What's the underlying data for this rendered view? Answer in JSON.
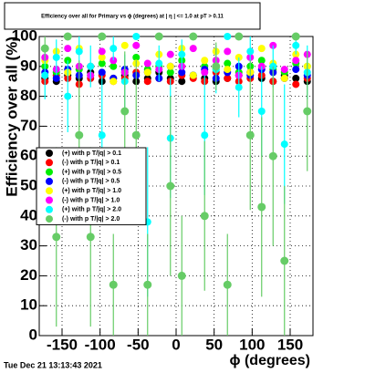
{
  "chart_data": {
    "type": "scatter",
    "title": "Efficiency over all for Primary vs ϕ (degrees) at | η | <= 1.0 at pT > 0.11",
    "x_label": "ϕ (degrees)",
    "y_label": "Efficiency over all (%)",
    "timestamp": "Tue Dec 21 13:13:43 2021",
    "x": [
      -172.5,
      -157.5,
      -142.5,
      -127.5,
      -112.5,
      -97.5,
      -82.5,
      -67.5,
      -52.5,
      -37.5,
      -22.5,
      -7.5,
      7.5,
      22.5,
      37.5,
      52.5,
      67.5,
      82.5,
      97.5,
      112.5,
      127.5,
      142.5,
      157.5,
      172.5
    ],
    "xlim": [
      -180,
      180
    ],
    "xticks": [
      -150,
      -100,
      -50,
      0,
      50,
      100,
      150
    ],
    "ylim": [
      0,
      100
    ],
    "yticks": [
      0,
      10,
      20,
      30,
      40,
      50,
      60,
      70,
      80,
      90,
      100
    ],
    "grid": true,
    "series": [
      {
        "name": "(+) with p T/|q| > 0.1",
        "color": "#000000",
        "values": [
          86,
          85,
          87,
          86,
          88,
          85,
          86,
          87,
          85,
          86,
          88,
          86,
          85,
          87,
          86,
          85,
          86,
          87,
          88,
          86,
          85,
          87,
          86,
          85
        ]
      },
      {
        "name": "(-) with p T/|q| > 0.1",
        "color": "#ff0000",
        "values": [
          85,
          87,
          86,
          84,
          86,
          87,
          85,
          86,
          88,
          85,
          86,
          85,
          87,
          86,
          85,
          88,
          86,
          85,
          86,
          87,
          85,
          86,
          84,
          86
        ]
      },
      {
        "name": "(+) with p T/|q| > 0.5",
        "color": "#00ee00",
        "values": [
          90,
          88,
          92,
          89,
          87,
          91,
          90,
          88,
          93,
          89,
          90,
          88,
          92,
          87,
          90,
          89,
          91,
          88,
          90,
          92,
          89,
          88,
          91,
          90
        ]
      },
      {
        "name": "(-) with p T/|q| > 0.5",
        "color": "#0000ff",
        "values": [
          88,
          86,
          89,
          87,
          90,
          88,
          86,
          89,
          87,
          88,
          86,
          90,
          88,
          87,
          89,
          86,
          88,
          90,
          87,
          89,
          88,
          86,
          89,
          87
        ]
      },
      {
        "name": "(+) with p T/|q| > 1.0",
        "color": "#ffff00",
        "values": [
          92,
          95,
          88,
          96,
          90,
          93,
          85,
          97,
          91,
          88,
          94,
          90,
          96,
          87,
          92,
          95,
          89,
          93,
          88,
          96,
          91,
          86,
          94,
          90
        ]
      },
      {
        "name": "(-) with p T/|q| > 1.0",
        "color": "#ff00ff",
        "values": [
          93,
          89,
          96,
          90,
          87,
          95,
          92,
          88,
          97,
          91,
          89,
          94,
          90,
          96,
          88,
          92,
          95,
          87,
          93,
          90,
          97,
          89,
          92,
          94
        ]
      },
      {
        "name": "(+) with p T/|q| > 2.0",
        "color": "#00ffff",
        "values": [
          87,
          93,
          80,
          95,
          90,
          67,
          96,
          85,
          100,
          38,
          91,
          66,
          94,
          100,
          67,
          89,
          100,
          83,
          95,
          75,
          90,
          64,
          97,
          88
        ],
        "errors": [
          8,
          6,
          12,
          5,
          7,
          20,
          4,
          9,
          0,
          25,
          6,
          20,
          5,
          0,
          20,
          8,
          0,
          10,
          5,
          15,
          7,
          20,
          3,
          9
        ]
      },
      {
        "name": "(-) with p T/|q| > 2.0",
        "color": "#66cc66",
        "values": [
          96,
          33,
          100,
          67,
          33,
          100,
          17,
          75,
          67,
          17,
          100,
          50,
          20,
          100,
          40,
          90,
          17,
          100,
          67,
          43,
          60,
          25,
          100,
          75
        ],
        "errors": [
          4,
          30,
          0,
          25,
          30,
          0,
          17,
          20,
          25,
          17,
          0,
          30,
          20,
          0,
          25,
          8,
          17,
          0,
          25,
          30,
          30,
          25,
          0,
          20
        ]
      }
    ]
  }
}
